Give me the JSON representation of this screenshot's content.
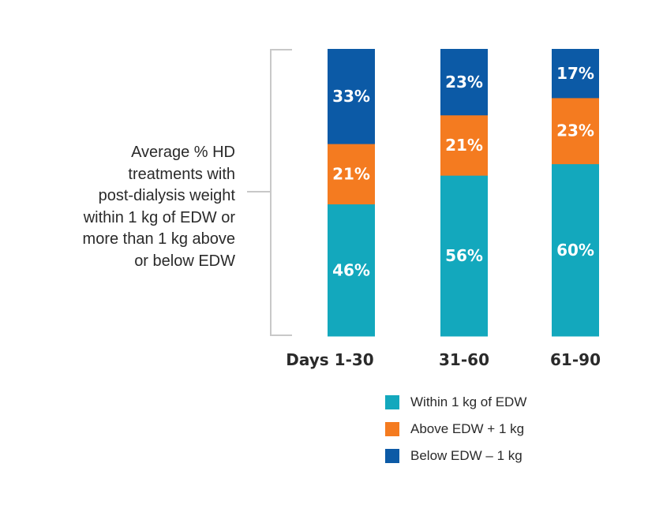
{
  "chart_data": {
    "type": "bar",
    "stacked": true,
    "orientation": "vertical",
    "categories": [
      "Days 1-30",
      "31-60",
      "61-90"
    ],
    "series": [
      {
        "name": "Within 1 kg of EDW",
        "color": "#13a8bd",
        "values": [
          46,
          56,
          60
        ],
        "labels": [
          "46%",
          "56%",
          "60%"
        ]
      },
      {
        "name": "Above EDW + 1 kg",
        "color": "#f47b20",
        "values": [
          21,
          21,
          23
        ],
        "labels": [
          "21%",
          "21%",
          "23%"
        ]
      },
      {
        "name": "Below EDW – 1 kg",
        "color": "#0c5aa6",
        "values": [
          33,
          23,
          17
        ],
        "labels": [
          "33%",
          "23%",
          "17%"
        ]
      }
    ],
    "ylim": [
      0,
      100
    ],
    "ylabel_lines": [
      "Average % HD",
      "treatments with",
      "post-dialysis weight",
      "within 1 kg of EDW or",
      "more than 1 kg above",
      "or below EDW"
    ],
    "legend_position": "bottom-right",
    "grid": false
  }
}
